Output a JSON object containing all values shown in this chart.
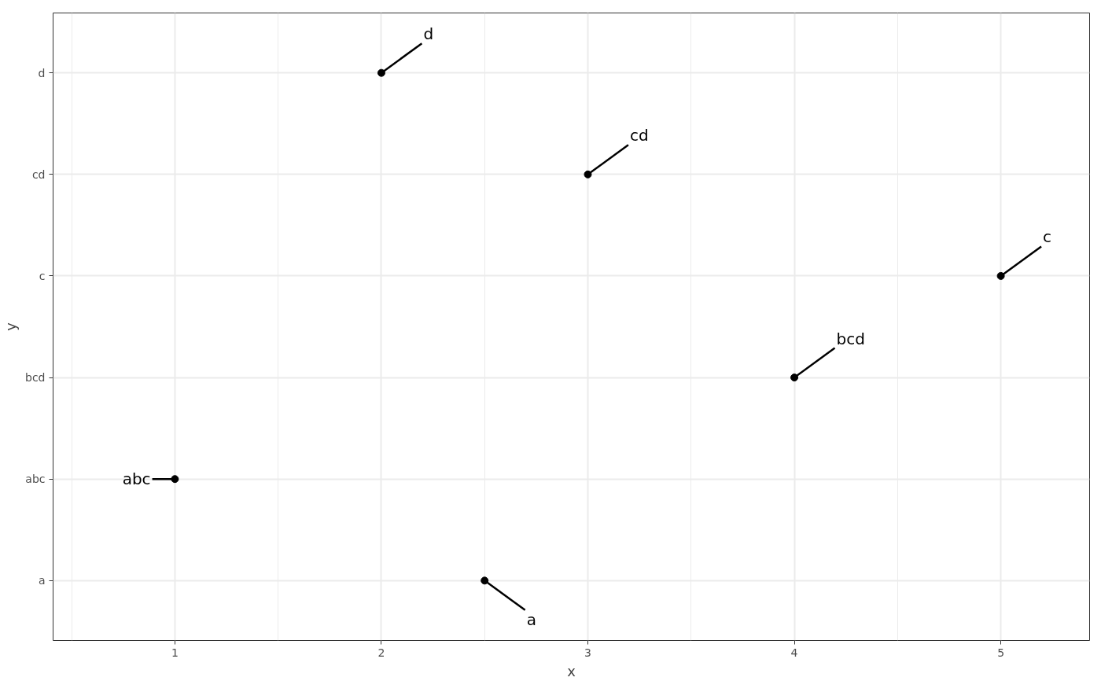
{
  "chart_data": {
    "type": "scatter",
    "orientation": "horizontal",
    "xlabel": "x",
    "ylabel": "y",
    "categories": [
      "d",
      "cd",
      "c",
      "bcd",
      "abc",
      "a"
    ],
    "series": [
      {
        "color": "#000000",
        "values": [
          2,
          3,
          5,
          4,
          1,
          2.5
        ]
      }
    ],
    "xlim": [
      0.41,
      5.43
    ],
    "xticks": [
      1,
      2,
      3,
      4,
      5
    ],
    "annotations": [
      {
        "text": "abc",
        "x": 1,
        "y": "abc"
      },
      {
        "text": "d",
        "x": 2,
        "y": "d"
      },
      {
        "text": "a",
        "x": 2.5,
        "y": "a"
      },
      {
        "text": "cd",
        "x": 3,
        "y": "cd"
      },
      {
        "text": "bcd",
        "x": 4,
        "y": "bcd"
      },
      {
        "text": "c",
        "x": 5,
        "y": "c"
      }
    ],
    "grid": true,
    "marker": "circle"
  }
}
